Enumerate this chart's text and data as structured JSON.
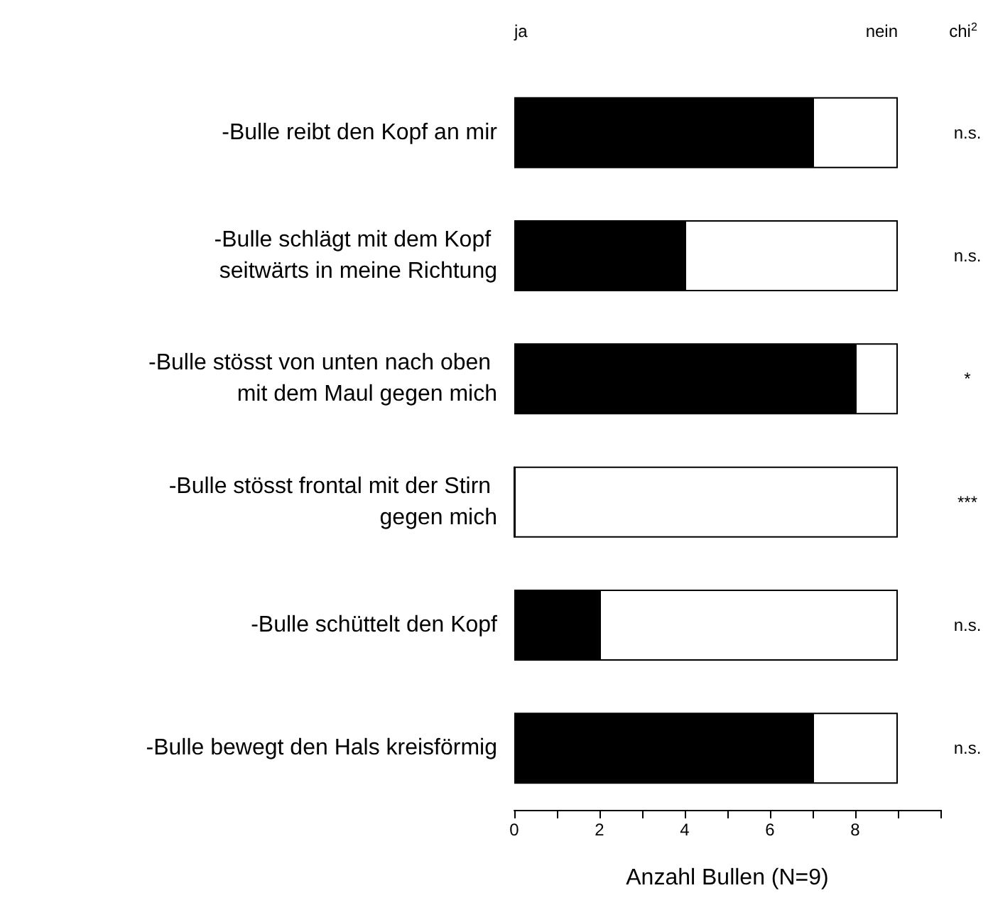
{
  "chart_data": {
    "type": "bar",
    "orientation": "horizontal",
    "stacked": true,
    "xlabel": "Anzahl Bullen (N=9)",
    "categories": [
      "-Bulle reibt den Kopf an mir",
      "-Bulle schlägt mit dem Kopf seitwärts in meine Richtung",
      "-Bulle stösst von unten nach oben mit dem Maul gegen mich",
      "-Bulle stösst frontal mit der Stirn gegen mich",
      "-Bulle schüttelt den Kopf",
      "-Bulle bewegt den Hals kreisförmig"
    ],
    "series": [
      {
        "color": "#000000",
        "values": [
          7,
          4,
          8,
          0,
          2,
          7
        ]
      },
      {
        "color": "#ffffff",
        "values": [
          2,
          5,
          1,
          9,
          7,
          2
        ]
      }
    ],
    "xlim": [
      0,
      10
    ],
    "xticks": [
      0,
      {
        "value": 1,
        "label": null
      },
      2,
      {
        "value": 3,
        "label": null
      },
      4,
      {
        "value": 5,
        "label": null
      },
      6,
      {
        "value": 7,
        "label": null
      },
      8,
      {
        "value": 9,
        "label": null
      },
      {
        "value": 10,
        "label": null
      }
    ],
    "grid": false,
    "annotations": [
      "ja",
      "nein",
      "chi$^{2}$",
      "n.s.",
      "n.s.",
      "*",
      "***",
      "n.s.",
      "n.s."
    ]
  }
}
